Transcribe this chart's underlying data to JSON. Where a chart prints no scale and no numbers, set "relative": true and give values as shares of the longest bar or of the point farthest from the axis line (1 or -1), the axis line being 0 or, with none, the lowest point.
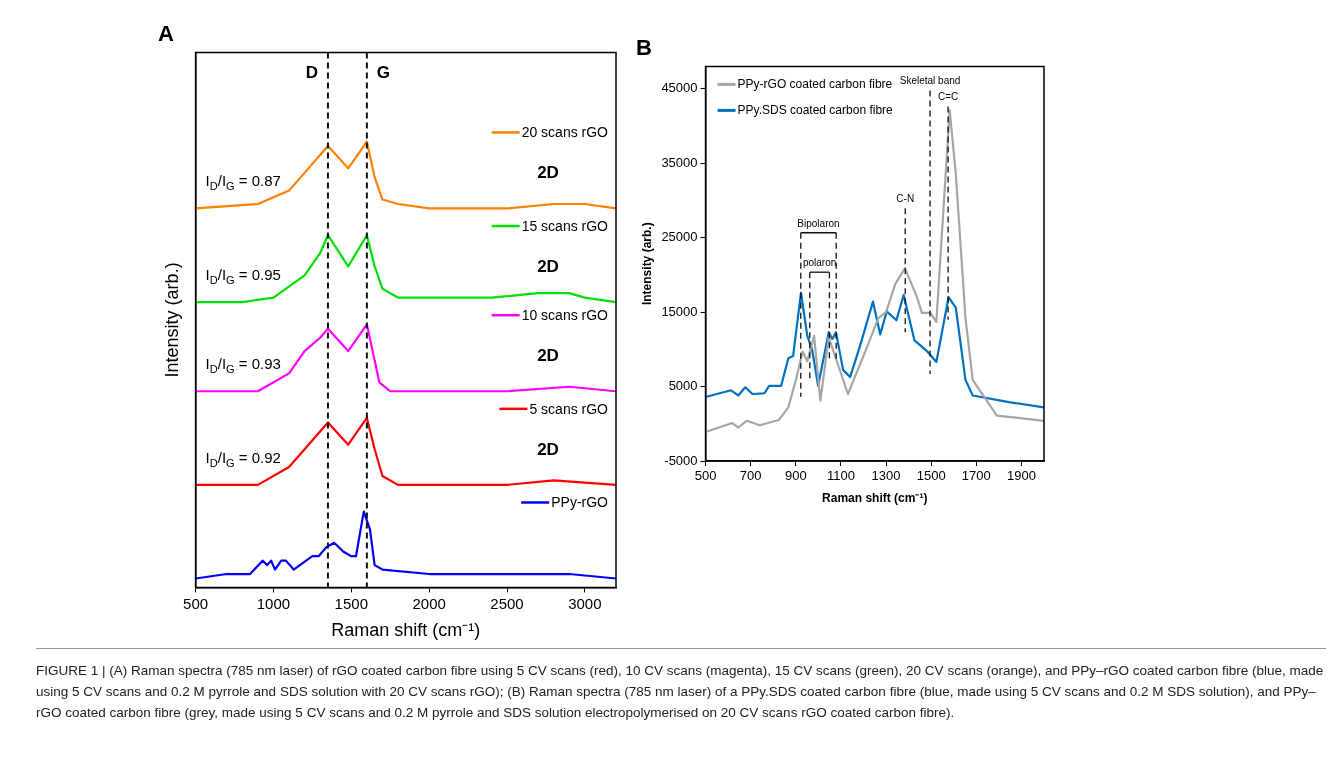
{
  "chart_data": [
    {
      "type": "line",
      "title": "A",
      "xlabel": "Raman shift (cm⁻¹)",
      "ylabel": "Intensity (arb.)",
      "relative": true,
      "xlim": [
        500,
        3200
      ],
      "xticks": [
        500,
        1000,
        1500,
        2000,
        2500,
        3000
      ],
      "grid": false,
      "legend": "right",
      "series": [
        {
          "name": "20 scans rGO",
          "color": "#ff8000",
          "x": [
            500,
            900,
            1100,
            1250,
            1350,
            1480,
            1600,
            1650,
            1700,
            1800,
            2000,
            2500,
            2800,
            3000,
            3200
          ],
          "values": [
            0.85,
            0.86,
            0.89,
            0.95,
            0.99,
            0.94,
            1,
            0.92,
            0.87,
            0.86,
            0.85,
            0.85,
            0.86,
            0.86,
            0.85
          ]
        },
        {
          "name": "15 scans rGO",
          "color": "#00e000",
          "x": [
            500,
            800,
            1000,
            1200,
            1300,
            1350,
            1480,
            1600,
            1650,
            1700,
            1800,
            2000,
            2400,
            2700,
            2900,
            3000,
            3200
          ],
          "values": [
            0.64,
            0.64,
            0.65,
            0.7,
            0.75,
            0.79,
            0.72,
            0.79,
            0.72,
            0.67,
            0.65,
            0.65,
            0.65,
            0.66,
            0.66,
            0.65,
            0.64
          ]
        },
        {
          "name": "10 scans rGO",
          "color": "#ff00ff",
          "x": [
            500,
            900,
            1100,
            1200,
            1300,
            1350,
            1480,
            1600,
            1680,
            1750,
            2000,
            2500,
            2900,
            3200
          ],
          "values": [
            0.44,
            0.44,
            0.48,
            0.53,
            0.56,
            0.58,
            0.53,
            0.59,
            0.46,
            0.44,
            0.44,
            0.44,
            0.45,
            0.44
          ]
        },
        {
          "name": "5 scans rGO",
          "color": "#ff0000",
          "x": [
            500,
            900,
            1100,
            1200,
            1350,
            1480,
            1600,
            1650,
            1700,
            1800,
            2500,
            2800,
            3200
          ],
          "values": [
            0.23,
            0.23,
            0.27,
            0.31,
            0.37,
            0.32,
            0.38,
            0.31,
            0.25,
            0.23,
            0.23,
            0.24,
            0.23
          ]
        },
        {
          "name": "PPy-rGO",
          "color": "#0000ff",
          "x": [
            500,
            700,
            850,
            930,
            960,
            985,
            1010,
            1050,
            1080,
            1130,
            1250,
            1290,
            1340,
            1390,
            1450,
            1500,
            1530,
            1580,
            1620,
            1650,
            1700,
            2000,
            2500,
            2900,
            3200
          ],
          "values": [
            0.02,
            0.03,
            0.03,
            0.06,
            0.05,
            0.06,
            0.04,
            0.06,
            0.06,
            0.04,
            0.07,
            0.07,
            0.09,
            0.1,
            0.08,
            0.07,
            0.07,
            0.17,
            0.13,
            0.05,
            0.04,
            0.03,
            0.03,
            0.03,
            0.02
          ]
        }
      ],
      "ref_lines": [
        {
          "axis": "x",
          "value": 1350,
          "label": "D",
          "line_style": "dashed"
        },
        {
          "axis": "x",
          "value": 1600,
          "label": "G",
          "line_style": "dashed"
        }
      ],
      "annotations": [
        "I$_{D}$/I$_{G}$ = 0.87",
        "I$_{D}$/I$_{G}$ = 0.95",
        "I$_{D}$/I$_{G}$ = 0.93",
        "I$_{D}$/I$_{G}$ = 0.92",
        "2D",
        "2D",
        "2D",
        "2D",
        "FIGURE 1 | (A) Raman spectra (785 nm laser) of rGO coated carbon fibre using 5 CV scans (red), 10 CV scans (magenta), 15 CV scans (green), 20 CV scans (orange), and PPy–rGO coated carbon fibre (blue, made using 5 CV scans and 0.2 M pyrrole and SDS solution with 20 CV scans rGO); (B) Raman spectra (785 nm laser) of a PPy.SDS coated carbon fibre (blue, made using 5 CV scans and 0.2 M SDS solution), and PPy–rGO coated carbon fibre (grey, made using 5 CV scans and 0.2 M pyrrole and SDS solution electropolymerised on 20 CV scans rGO coated carbon fibre)."
      ]
    },
    {
      "type": "line",
      "title": "B",
      "xlabel": "Raman shift (cm⁻¹)",
      "ylabel": "Intensity (arb.)",
      "xlim": [
        500,
        2000
      ],
      "xticks": [
        500,
        700,
        900,
        1100,
        1300,
        1500,
        1700,
        1900
      ],
      "ylim": [
        -5000,
        48000
      ],
      "yticks": [
        -5000,
        5000,
        15000,
        25000,
        35000,
        45000
      ],
      "grid": false,
      "legend": "top left",
      "series": [
        {
          "name": "PPy-rGO coated carbon fibre",
          "color": "#a6a6a6",
          "x": [
            500,
            618,
            645,
            682,
            740,
            824,
            867,
            904,
            930,
            951,
            981,
            1009,
            1046,
            1131,
            1205,
            1266,
            1300,
            1341,
            1384,
            1437,
            1459,
            1496,
            1523,
            1582,
            1609,
            1652,
            1684,
            1791,
            2000
          ],
          "values": [
            -1100,
            100,
            -500,
            400,
            -200,
            500,
            2200,
            6300,
            9700,
            8400,
            11800,
            3100,
            11600,
            4000,
            9500,
            14200,
            15000,
            18800,
            20900,
            17000,
            14900,
            14900,
            13700,
            42100,
            33600,
            14200,
            5900,
            1100,
            400
          ]
        },
        {
          "name": "PPy.SDS coated carbon fibre",
          "color": "#0070c0",
          "x": [
            500,
            613,
            645,
            676,
            708,
            761,
            782,
            835,
            867,
            888,
            923,
            951,
            972,
            999,
            1046,
            1062,
            1078,
            1110,
            1141,
            1184,
            1242,
            1274,
            1303,
            1346,
            1378,
            1426,
            1480,
            1523,
            1577,
            1609,
            1652,
            1684,
            1845,
            2000
          ],
          "values": [
            3600,
            4500,
            3800,
            4900,
            4000,
            4100,
            5100,
            5100,
            8800,
            9100,
            17600,
            11800,
            10000,
            5100,
            12300,
            11400,
            12300,
            7200,
            6300,
            10400,
            16400,
            12000,
            15100,
            13900,
            17300,
            11200,
            9800,
            8300,
            17000,
            15600,
            5900,
            3800,
            2900,
            2200
          ]
        }
      ],
      "ref_lines": [
        {
          "axis": "x",
          "value": 922,
          "line_style": "dashed"
        },
        {
          "axis": "x",
          "value": 962,
          "line_style": "dashed"
        },
        {
          "axis": "x",
          "value": 1049,
          "line_style": "dashed"
        },
        {
          "axis": "x",
          "value": 1079,
          "line_style": "dashed"
        },
        {
          "axis": "x",
          "value": 1385,
          "label": "C-N",
          "line_style": "dashed"
        },
        {
          "axis": "x",
          "value": 1495,
          "label": "Skeletal band",
          "line_style": "dashed"
        },
        {
          "axis": "x",
          "value": 1575,
          "label": "C=C",
          "line_style": "dashed"
        }
      ],
      "annotations": [
        "Bipolaron",
        "polaron"
      ]
    }
  ]
}
